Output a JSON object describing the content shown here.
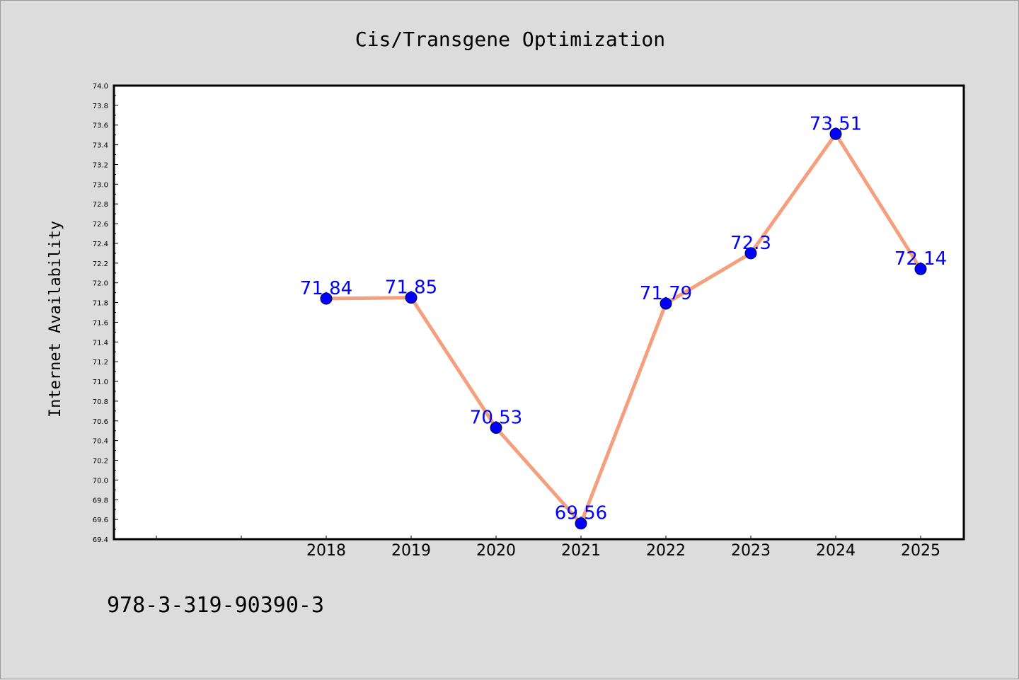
{
  "chart_data": {
    "type": "line",
    "title": "Cis/Transgene Optimization",
    "xlabel": "",
    "ylabel": "Internet Availability",
    "categories": [
      "2018",
      "2019",
      "2020",
      "2021",
      "2022",
      "2023",
      "2024",
      "2025"
    ],
    "values": [
      71.84,
      71.85,
      70.53,
      69.56,
      71.79,
      72.3,
      73.51,
      72.14
    ],
    "data_labels": [
      "71.84",
      "71.85",
      "70.53",
      "69.56",
      "71.79",
      "72.3",
      "73.51",
      "72.14"
    ],
    "ylim": [
      69.4,
      74.0
    ],
    "yticks": [
      "69.4",
      "69.6",
      "69.8",
      "70.0",
      "70.2",
      "70.4",
      "70.6",
      "70.8",
      "71.0",
      "71.2",
      "71.4",
      "71.6",
      "71.8",
      "72.0",
      "72.2",
      "72.4",
      "72.6",
      "72.8",
      "73.0",
      "73.2",
      "73.4",
      "73.6",
      "73.8",
      "74.0"
    ],
    "grid": false,
    "legend": "none",
    "colors": {
      "line": "#f4a07e",
      "marker": "#0000ff",
      "label": "#0000ff",
      "background": "#dcdcdc",
      "plot_bg": "#ffffff"
    }
  },
  "footer": {
    "text": "978-3-319-90390-3"
  }
}
